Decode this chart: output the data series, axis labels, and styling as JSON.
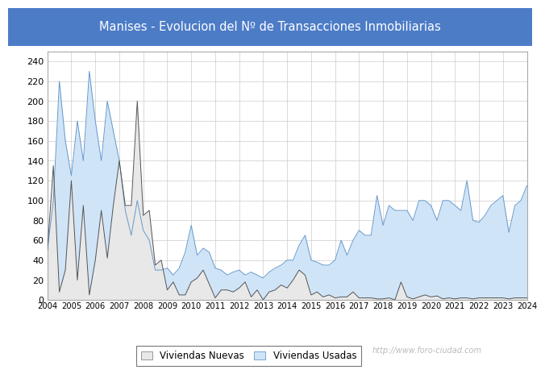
{
  "title": "Manises - Evolucion del Nº de Transacciones Inmobiliarias",
  "title_bg_color": "#4d7cc7",
  "title_text_color": "white",
  "watermark": "http://www.foro-ciudad.com",
  "legend_labels": [
    "Viviendas Nuevas",
    "Viviendas Usadas"
  ],
  "nuevas_fill_color": "#e8e8e8",
  "usadas_fill_color": "#d0e4f7",
  "nuevas_line_color": "#555555",
  "usadas_line_color": "#6699cc",
  "ylim": [
    0,
    250
  ],
  "yticks": [
    0,
    20,
    40,
    60,
    80,
    100,
    120,
    140,
    160,
    180,
    200,
    220,
    240
  ],
  "x_labels": [
    "2004",
    "2005",
    "2006",
    "2007",
    "2008",
    "2009",
    "2010",
    "2011",
    "2012",
    "2013",
    "2014",
    "2015",
    "2016",
    "2017",
    "2018",
    "2019",
    "2020",
    "2021",
    "2022",
    "2023",
    "2024"
  ],
  "nuevas": [
    50,
    135,
    8,
    30,
    120,
    20,
    95,
    5,
    40,
    90,
    42,
    95,
    140,
    95,
    95,
    200,
    85,
    90,
    35,
    40,
    10,
    18,
    5,
    5,
    18,
    22,
    30,
    16,
    2,
    10,
    10,
    8,
    12,
    18,
    3,
    10,
    0,
    8,
    10,
    15,
    12,
    20,
    30,
    25,
    5,
    8,
    3,
    5,
    2,
    3,
    3,
    8,
    2,
    2,
    2,
    1,
    1,
    2,
    0,
    18,
    3,
    1,
    3,
    5,
    3,
    4,
    1,
    2,
    1,
    2,
    2,
    1,
    2,
    2,
    2,
    2,
    2,
    1,
    2,
    2,
    2
  ],
  "usadas": [
    50,
    100,
    220,
    160,
    125,
    180,
    140,
    230,
    180,
    140,
    200,
    170,
    140,
    90,
    65,
    100,
    70,
    60,
    30,
    30,
    32,
    25,
    32,
    48,
    75,
    45,
    52,
    48,
    32,
    30,
    25,
    28,
    30,
    25,
    28,
    25,
    22,
    28,
    32,
    35,
    40,
    40,
    55,
    65,
    40,
    38,
    35,
    35,
    40,
    60,
    45,
    60,
    70,
    65,
    65,
    105,
    75,
    95,
    90,
    90,
    90,
    80,
    100,
    100,
    95,
    80,
    100,
    100,
    95,
    90,
    120,
    80,
    78,
    85,
    95,
    100,
    105,
    68,
    95,
    100,
    115
  ]
}
